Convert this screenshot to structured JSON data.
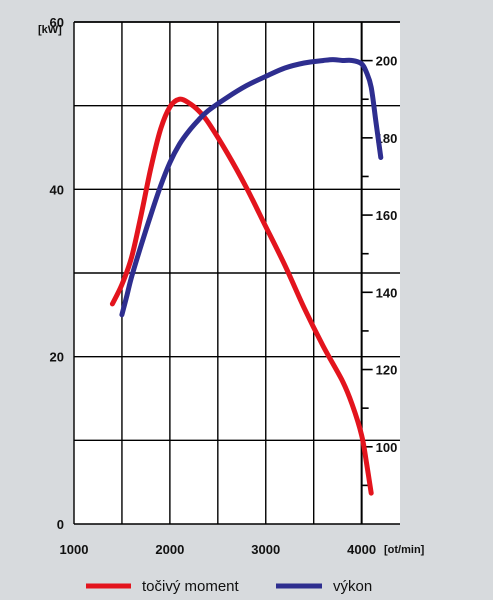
{
  "colors": {
    "background": "#d7dadd",
    "plot_bg": "#ffffff",
    "grid": "#000000",
    "torque": "#e3141d",
    "power": "#2e2e8f"
  },
  "chart_data": {
    "type": "line",
    "title": "",
    "grid": true,
    "legend_position": "bottom",
    "x_axis": {
      "unit_label": "[ot/min]",
      "range": [
        1000,
        4400
      ],
      "tick_labels": [
        "1000",
        "2000",
        "3000",
        "4000"
      ],
      "tick_values": [
        1000,
        2000,
        3000,
        4000
      ]
    },
    "y_left": {
      "unit_label": "[kW]",
      "range": [
        0,
        60
      ],
      "tick_labels": [
        "0",
        "20",
        "40",
        "60"
      ],
      "tick_values": [
        0,
        20,
        40,
        60
      ]
    },
    "y_right": {
      "range": [
        80,
        210
      ],
      "tick_labels": [
        "100",
        "120",
        "140",
        "160",
        "180",
        "200"
      ],
      "tick_values": [
        100,
        120,
        140,
        160,
        180,
        200
      ]
    },
    "series": [
      {
        "name": "točivý moment",
        "axis": "right",
        "color": "#e3141d",
        "x": [
          1400,
          1500,
          1600,
          1700,
          1800,
          1900,
          2000,
          2100,
          2200,
          2300,
          2400,
          2600,
          2800,
          3000,
          3200,
          3400,
          3600,
          3800,
          3900,
          4000,
          4050,
          4100
        ],
        "values": [
          137,
          142,
          149,
          160,
          172,
          182,
          188,
          190,
          189,
          187,
          184,
          176,
          167,
          157,
          147,
          136,
          126,
          117,
          111,
          103,
          96,
          88
        ]
      },
      {
        "name": "výkon",
        "axis": "left",
        "color": "#2e2e8f",
        "x": [
          1500,
          1550,
          1600,
          1700,
          1800,
          1900,
          2000,
          2100,
          2200,
          2300,
          2400,
          2600,
          2800,
          3000,
          3200,
          3400,
          3600,
          3700,
          3800,
          3900,
          4000,
          4050,
          4100,
          4150,
          4200
        ],
        "values": [
          25,
          27.2,
          29.5,
          33.3,
          36.9,
          40.3,
          43.2,
          45.4,
          47,
          48.3,
          49.4,
          51,
          52.4,
          53.5,
          54.5,
          55.1,
          55.4,
          55.5,
          55.4,
          55.4,
          55,
          54,
          52.2,
          48,
          43.8
        ]
      }
    ]
  }
}
